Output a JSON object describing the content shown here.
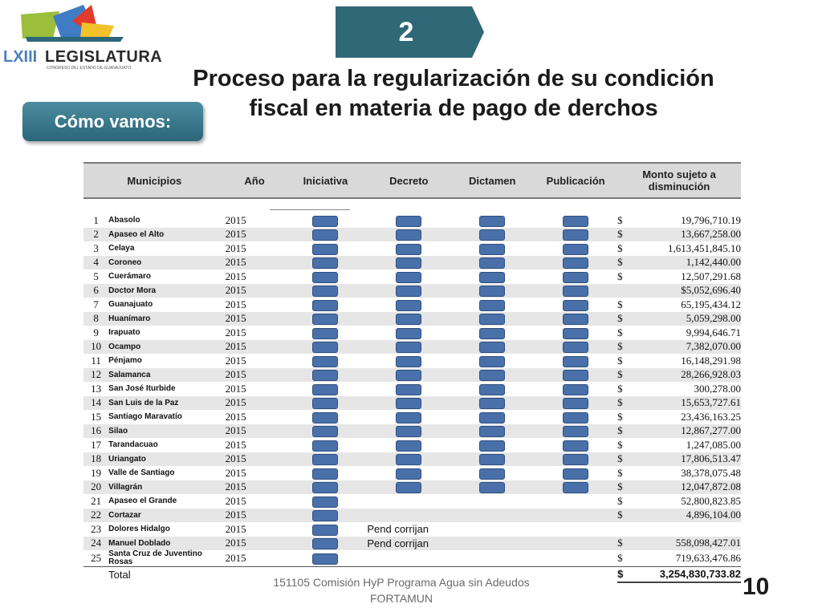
{
  "logo": {
    "mark": "LXIII",
    "name": "LEGISLATURA",
    "subtitle": "CONGRESO DEL ESTADO DE GUANAJUATO"
  },
  "step": {
    "number": "2",
    "color": "#2f6877"
  },
  "title": {
    "line1": "Proceso para la regularización de su condición",
    "line2": "fiscal en materia de pago de derchos"
  },
  "status_pill": {
    "label": "Cómo vamos:",
    "color": "#2b6679"
  },
  "table": {
    "headers": [
      "Municipios",
      "Año",
      "Iniciativa",
      "Decreto",
      "Dictamen",
      "Publicación",
      "Monto sujeto a disminución"
    ],
    "rows": [
      {
        "n": "1",
        "mun": "Abasolo",
        "year": "2015",
        "ini": true,
        "dec": true,
        "dic": true,
        "pub": true,
        "dollar": "$",
        "amt": "19,796,710.19",
        "pend": ""
      },
      {
        "n": "2",
        "mun": "Apaseo el Alto",
        "year": "2015",
        "ini": true,
        "dec": true,
        "dic": true,
        "pub": true,
        "dollar": "$",
        "amt": "13,667,258.00",
        "pend": ""
      },
      {
        "n": "3",
        "mun": "Celaya",
        "year": "2015",
        "ini": true,
        "dec": true,
        "dic": true,
        "pub": true,
        "dollar": "$",
        "amt": "1,613,451,845.10",
        "pend": ""
      },
      {
        "n": "4",
        "mun": "Coroneo",
        "year": "2015",
        "ini": true,
        "dec": true,
        "dic": true,
        "pub": true,
        "dollar": "$",
        "amt": "1,142,440.00",
        "pend": ""
      },
      {
        "n": "5",
        "mun": "Cuerámaro",
        "year": "2015",
        "ini": true,
        "dec": true,
        "dic": true,
        "pub": true,
        "dollar": "$",
        "amt": "12,507,291.68",
        "pend": ""
      },
      {
        "n": "6",
        "mun": "Doctor Mora",
        "year": "2015",
        "ini": true,
        "dec": true,
        "dic": true,
        "pub": true,
        "dollar": "",
        "amt": "$5,052,696.40",
        "pend": ""
      },
      {
        "n": "7",
        "mun": "Guanajuato",
        "year": "2015",
        "ini": true,
        "dec": true,
        "dic": true,
        "pub": true,
        "dollar": "$",
        "amt": "65,195,434.12",
        "pend": ""
      },
      {
        "n": "8",
        "mun": "Huanímaro",
        "year": "2015",
        "ini": true,
        "dec": true,
        "dic": true,
        "pub": true,
        "dollar": "$",
        "amt": "5,059,298.00",
        "pend": ""
      },
      {
        "n": "9",
        "mun": "Irapuato",
        "year": "2015",
        "ini": true,
        "dec": true,
        "dic": true,
        "pub": true,
        "dollar": "$",
        "amt": "9,994,646.71",
        "pend": ""
      },
      {
        "n": "10",
        "mun": "Ocampo",
        "year": "2015",
        "ini": true,
        "dec": true,
        "dic": true,
        "pub": true,
        "dollar": "$",
        "amt": "7,382,070.00",
        "pend": ""
      },
      {
        "n": "11",
        "mun": "Pénjamo",
        "year": "2015",
        "ini": true,
        "dec": true,
        "dic": true,
        "pub": true,
        "dollar": "$",
        "amt": "16,148,291.98",
        "pend": ""
      },
      {
        "n": "12",
        "mun": "Salamanca",
        "year": "2015",
        "ini": true,
        "dec": true,
        "dic": true,
        "pub": true,
        "dollar": "$",
        "amt": "28,266,928.03",
        "pend": ""
      },
      {
        "n": "13",
        "mun": "San José Iturbide",
        "year": "2015",
        "ini": true,
        "dec": true,
        "dic": true,
        "pub": true,
        "dollar": "$",
        "amt": "300,278.00",
        "pend": ""
      },
      {
        "n": "14",
        "mun": "San Luis de la Paz",
        "year": "2015",
        "ini": true,
        "dec": true,
        "dic": true,
        "pub": true,
        "dollar": "$",
        "amt": "15,653,727.61",
        "pend": ""
      },
      {
        "n": "15",
        "mun": "Santiago Maravatío",
        "year": "2015",
        "ini": true,
        "dec": true,
        "dic": true,
        "pub": true,
        "dollar": "$",
        "amt": "23,436,163.25",
        "pend": ""
      },
      {
        "n": "16",
        "mun": "Silao",
        "year": "2015",
        "ini": true,
        "dec": true,
        "dic": true,
        "pub": true,
        "dollar": "$",
        "amt": "12,867,277.00",
        "pend": ""
      },
      {
        "n": "17",
        "mun": "Tarandacuao",
        "year": "2015",
        "ini": true,
        "dec": true,
        "dic": true,
        "pub": true,
        "dollar": "$",
        "amt": "1,247,085.00",
        "pend": ""
      },
      {
        "n": "18",
        "mun": "Uriangato",
        "year": "2015",
        "ini": true,
        "dec": true,
        "dic": true,
        "pub": true,
        "dollar": "$",
        "amt": "17,806,513.47",
        "pend": ""
      },
      {
        "n": "19",
        "mun": "Valle de Santiago",
        "year": "2015",
        "ini": true,
        "dec": true,
        "dic": true,
        "pub": true,
        "dollar": "$",
        "amt": "38,378,075.48",
        "pend": ""
      },
      {
        "n": "20",
        "mun": "Villagrán",
        "year": "2015",
        "ini": true,
        "dec": true,
        "dic": true,
        "pub": true,
        "dollar": "$",
        "amt": "12,047,872.08",
        "pend": ""
      },
      {
        "n": "21",
        "mun": "Apaseo el Grande",
        "year": "2015",
        "ini": true,
        "dec": false,
        "dic": false,
        "pub": false,
        "dollar": "$",
        "amt": "52,800,823.85",
        "pend": ""
      },
      {
        "n": "22",
        "mun": "Cortazar",
        "year": "2015",
        "ini": true,
        "dec": false,
        "dic": false,
        "pub": false,
        "dollar": "$",
        "amt": "4,896,104.00",
        "pend": ""
      },
      {
        "n": "23",
        "mun": "Dolores Hidalgo",
        "year": "2015",
        "ini": true,
        "dec": false,
        "dic": false,
        "pub": false,
        "dollar": "",
        "amt": "",
        "pend": "Pend corrijan"
      },
      {
        "n": "24",
        "mun": "Manuel Doblado",
        "year": "2015",
        "ini": true,
        "dec": false,
        "dic": false,
        "pub": false,
        "dollar": "$",
        "amt": "558,098,427.01",
        "pend": "Pend corrijan"
      },
      {
        "n": "25",
        "mun": "Santa Cruz de Juventino Rosas",
        "year": "2015",
        "ini": true,
        "dec": false,
        "dic": false,
        "pub": false,
        "dollar": "$",
        "amt": "719,633,476.86",
        "pend": ""
      }
    ],
    "total": {
      "label": "Total",
      "dollar": "$",
      "amount": "3,254,830,733.82"
    }
  },
  "footer": {
    "text": "151105 Comisión HyP Programa Agua sin Adeudos FORTAMUN"
  },
  "page_number": "10",
  "colors": {
    "block": "#4a70aa",
    "header_bg": "#d9d9d9",
    "stripe": "#e6e6e6"
  }
}
